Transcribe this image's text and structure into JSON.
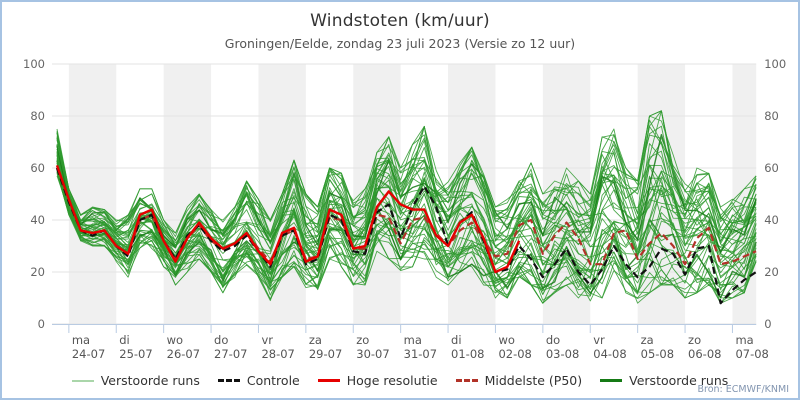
{
  "header": {
    "title": "Windstoten (km/uur)",
    "subtitle": "Groningen/Eelde, zondag 23 juli 2023 (Versie zo 12 uur)"
  },
  "source": "Bron: ECMWF/KNMI",
  "legend": {
    "items": [
      {
        "label": "Verstoorde runs",
        "color": "#aad6aa",
        "style": "solid-thin"
      },
      {
        "label": "Controle",
        "color": "#111111",
        "style": "dashed"
      },
      {
        "label": "Hoge resolutie",
        "color": "#e60000",
        "style": "solid"
      },
      {
        "label": "Middelste (P50)",
        "color": "#b23228",
        "style": "dashed"
      },
      {
        "label": "Verstoorde runs",
        "color": "#157a15",
        "style": "solid"
      }
    ]
  },
  "chart_data": {
    "type": "line",
    "title": "Windstoten (km/uur)",
    "subtitle": "Groningen/Eelde, zondag 23 juli 2023 (Versie zo 12 uur)",
    "ylabel": "km/uur",
    "ylim": [
      0,
      100
    ],
    "y_ticks": [
      0,
      20,
      40,
      60,
      80,
      100
    ],
    "grid": true,
    "legend_position": "bottom",
    "band_color": "#f0f0f0",
    "x_start": "23-07 18:00",
    "x_step_hours": 6,
    "x_points": 60,
    "x_day_labels": [
      {
        "day": "ma",
        "date": "24-07"
      },
      {
        "day": "di",
        "date": "25-07"
      },
      {
        "day": "wo",
        "date": "26-07"
      },
      {
        "day": "do",
        "date": "27-07"
      },
      {
        "day": "vr",
        "date": "28-07"
      },
      {
        "day": "za",
        "date": "29-07"
      },
      {
        "day": "zo",
        "date": "30-07"
      },
      {
        "day": "ma",
        "date": "31-07"
      },
      {
        "day": "di",
        "date": "01-08"
      },
      {
        "day": "wo",
        "date": "02-08"
      },
      {
        "day": "do",
        "date": "03-08"
      },
      {
        "day": "vr",
        "date": "04-08"
      },
      {
        "day": "za",
        "date": "05-08"
      },
      {
        "day": "zo",
        "date": "06-08"
      },
      {
        "day": "ma",
        "date": "07-08"
      }
    ],
    "series": [
      {
        "name": "Controle",
        "style": "dashed",
        "color": "#111111",
        "values": [
          60,
          47,
          36,
          34,
          36,
          30,
          26,
          40,
          42,
          32,
          25,
          34,
          38,
          32,
          28,
          30,
          34,
          28,
          22,
          34,
          36,
          23,
          25,
          42,
          40,
          28,
          27,
          43,
          46,
          33,
          45,
          53,
          45,
          30,
          39,
          43,
          32,
          20,
          21,
          30,
          25,
          18,
          23,
          29,
          20,
          15,
          21,
          30,
          23,
          18,
          22,
          29,
          27,
          19,
          29,
          30,
          8,
          13,
          17,
          20
        ]
      },
      {
        "name": "Hoge resolutie",
        "style": "solid",
        "color": "#e60000",
        "values": [
          61,
          48,
          36,
          35,
          36,
          30,
          27,
          42,
          44,
          32,
          24,
          33,
          39,
          33,
          29,
          31,
          35,
          28,
          23,
          35,
          37,
          24,
          26,
          44,
          42,
          29,
          30,
          45,
          51,
          46,
          44,
          44,
          34,
          30,
          39,
          42,
          33,
          20,
          22,
          32
        ]
      },
      {
        "name": "Middelste (P50)",
        "style": "dashed",
        "color": "#b23228",
        "values": [
          60,
          47,
          36,
          35,
          36,
          30,
          27,
          40,
          42,
          32,
          25,
          33,
          38,
          32,
          29,
          31,
          35,
          29,
          24,
          34,
          36,
          25,
          26,
          41,
          40,
          29,
          29,
          42,
          41,
          31,
          40,
          41,
          35,
          30,
          36,
          39,
          32,
          26,
          27,
          38,
          40,
          27,
          34,
          39,
          33,
          23,
          23,
          35,
          36,
          25,
          31,
          35,
          30,
          23,
          33,
          37,
          23,
          24,
          26,
          28
        ]
      }
    ],
    "ensemble": {
      "name": "Verstoorde runs",
      "count": 48,
      "seed": 20230723,
      "color": "#2f9a2f",
      "dark_color": "#157a15",
      "envelope_min": [
        57,
        42,
        32,
        30,
        30,
        24,
        18,
        28,
        28,
        22,
        15,
        20,
        25,
        20,
        12,
        18,
        22,
        18,
        9,
        18,
        22,
        14,
        12,
        25,
        22,
        15,
        15,
        28,
        25,
        20,
        22,
        25,
        18,
        15,
        20,
        22,
        15,
        10,
        10,
        18,
        15,
        8,
        12,
        15,
        10,
        8,
        10,
        15,
        12,
        8,
        12,
        15,
        15,
        10,
        12,
        15,
        8,
        10,
        12,
        24
      ],
      "envelope_max": [
        75,
        52,
        42,
        45,
        44,
        40,
        42,
        52,
        52,
        40,
        35,
        45,
        50,
        44,
        40,
        45,
        55,
        48,
        40,
        50,
        63,
        50,
        45,
        60,
        58,
        48,
        52,
        66,
        72,
        60,
        70,
        76,
        60,
        55,
        62,
        68,
        58,
        45,
        48,
        55,
        62,
        50,
        55,
        60,
        55,
        50,
        72,
        75,
        60,
        55,
        80,
        82,
        65,
        58,
        60,
        58,
        45,
        48,
        52,
        57
      ]
    }
  }
}
